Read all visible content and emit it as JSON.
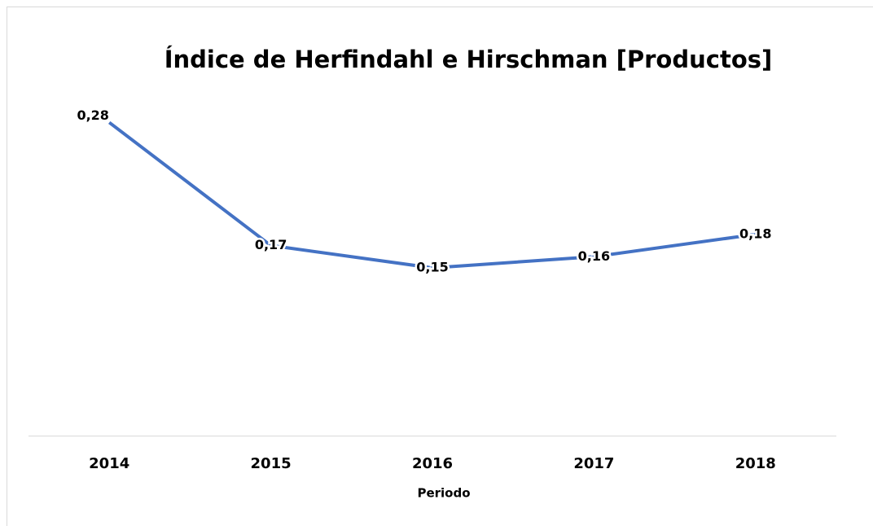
{
  "chart_data": {
    "type": "line",
    "title": "Índice de Herfindahl e Hirschman [Productos]",
    "x_label": "Periodo",
    "categories": [
      "2014",
      "2015",
      "2016",
      "2017",
      "2018"
    ],
    "series": [
      {
        "name": "Índice",
        "color": "#4472c4",
        "values": [
          0.28,
          0.17,
          0.15,
          0.16,
          0.18
        ],
        "value_labels": [
          "0,28",
          "0,17",
          "0,15",
          "0,16",
          "0,18"
        ]
      }
    ],
    "ylim": [
      0,
      0.3
    ]
  }
}
